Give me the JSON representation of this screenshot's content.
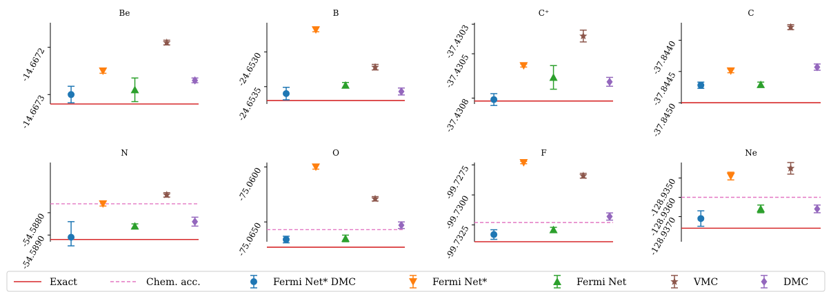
{
  "chart_data": {
    "type": "scatter",
    "panels": [
      {
        "title": "Be",
        "ylim": [
          -14.66732,
          -14.667148
        ],
        "yticks": [
          {
            "value": -14.6672,
            "label": "-14.6672"
          },
          {
            "value": -14.6673,
            "label": "-14.6673"
          }
        ],
        "exact": -14.66732,
        "chem_acc": null,
        "points": [
          {
            "series": "Fermi Net* DMC",
            "value": -14.6673,
            "err": 1.75e-05
          },
          {
            "series": "Fermi Net*",
            "value": -14.66725,
            "err": 5e-06
          },
          {
            "series": "Fermi Net",
            "value": -14.66729,
            "err": 2.5e-05
          },
          {
            "series": "VMC",
            "value": -14.66719,
            "err": 5e-06
          },
          {
            "series": "DMC",
            "value": -14.66727,
            "err": 5e-06
          }
        ]
      },
      {
        "title": "B",
        "ylim": [
          -24.65375,
          -24.65258
        ],
        "yticks": [
          {
            "value": -24.653,
            "label": "-24.6530"
          },
          {
            "value": -24.6535,
            "label": "-24.6535"
          }
        ],
        "exact": -24.6537,
        "chem_acc": null,
        "points": [
          {
            "series": "Fermi Net* DMC",
            "value": -24.6536,
            "err": 9e-05
          },
          {
            "series": "Fermi Net*",
            "value": -24.65268,
            "err": 3e-05
          },
          {
            "series": "Fermi Net",
            "value": -24.65348,
            "err": 4e-05
          },
          {
            "series": "VMC",
            "value": -24.65322,
            "err": 4e-05
          },
          {
            "series": "DMC",
            "value": -24.65357,
            "err": 5e-05
          }
        ]
      },
      {
        "title": "C⁺",
        "ylim": [
          -37.43084,
          -37.43029
        ],
        "yticks": [
          {
            "value": -37.4303,
            "label": "-37.4303"
          },
          {
            "value": -37.4305,
            "label": "-37.4305"
          },
          {
            "value": -37.4308,
            "label": "-37.4308"
          }
        ],
        "exact": -37.43082,
        "chem_acc": null,
        "points": [
          {
            "series": "Fermi Net* DMC",
            "value": -37.43081,
            "err": 4e-05
          },
          {
            "series": "Fermi Net*",
            "value": -37.43058,
            "err": 1e-05
          },
          {
            "series": "Fermi Net",
            "value": -37.43066,
            "err": 8e-05
          },
          {
            "series": "VMC",
            "value": -37.43038,
            "err": 4e-05
          },
          {
            "series": "DMC",
            "value": -37.43069,
            "err": 3e-05
          }
        ]
      },
      {
        "title": "C",
        "ylim": [
          -37.84502,
          -37.84372
        ],
        "yticks": [
          {
            "value": -37.844,
            "label": "-37.8440"
          },
          {
            "value": -37.8445,
            "label": "-37.8445"
          },
          {
            "value": -37.845,
            "label": "-37.8450"
          }
        ],
        "exact": -37.845,
        "chem_acc": null,
        "points": [
          {
            "series": "Fermi Net* DMC",
            "value": -37.84472,
            "err": 5e-05
          },
          {
            "series": "Fermi Net*",
            "value": -37.84449,
            "err": 3e-05
          },
          {
            "series": "Fermi Net",
            "value": -37.84471,
            "err": 4e-05
          },
          {
            "series": "VMC",
            "value": -37.84379,
            "err": 4e-05
          },
          {
            "series": "DMC",
            "value": -37.84443,
            "err": 5e-05
          }
        ]
      },
      {
        "title": "N",
        "ylim": [
          -54.5893,
          -54.58575
        ],
        "yticks": [
          {
            "value": -54.588,
            "label": "-54.5880"
          },
          {
            "value": -54.589,
            "label": "-54.5890"
          }
        ],
        "exact": -54.5892,
        "chem_acc": -54.5876,
        "points": [
          {
            "series": "Fermi Net* DMC",
            "value": -54.5891,
            "err": 0.0007
          },
          {
            "series": "Fermi Net*",
            "value": -54.5876,
            "err": 0.0001
          },
          {
            "series": "Fermi Net",
            "value": -54.5886,
            "err": 0.0001
          },
          {
            "series": "VMC",
            "value": -54.5872,
            "err": 0.0001
          },
          {
            "series": "DMC",
            "value": -54.5884,
            "err": 0.0002
          }
        ]
      },
      {
        "title": "O",
        "ylim": [
          -75.0668,
          -75.0596
        ],
        "yticks": [
          {
            "value": -75.06,
            "label": "-75.0600"
          },
          {
            "value": -75.065,
            "label": "-75.0650"
          }
        ],
        "exact": -75.0673,
        "chem_acc": -75.0657,
        "points": [
          {
            "series": "Fermi Net* DMC",
            "value": -75.0666,
            "err": 0.0003
          },
          {
            "series": "Fermi Net*",
            "value": -75.06,
            "err": 0.0002
          },
          {
            "series": "Fermi Net",
            "value": -75.0665,
            "err": 0.0003
          },
          {
            "series": "VMC",
            "value": -75.0629,
            "err": 0.0002
          },
          {
            "series": "DMC",
            "value": -75.0653,
            "err": 0.0003
          }
        ]
      },
      {
        "title": "F",
        "ylim": [
          -99.7339,
          -99.7273
        ],
        "yticks": [
          {
            "value": -99.7275,
            "label": "-99.7275"
          },
          {
            "value": -99.73,
            "label": "-99.7300"
          },
          {
            "value": -99.7325,
            "label": "-99.7325"
          }
        ],
        "exact": -99.7339,
        "chem_acc": -99.7323,
        "points": [
          {
            "series": "Fermi Net* DMC",
            "value": -99.7333,
            "err": 0.0004
          },
          {
            "series": "Fermi Net*",
            "value": -99.7273,
            "err": 0.0001
          },
          {
            "series": "Fermi Net",
            "value": -99.7329,
            "err": 0.0002
          },
          {
            "series": "VMC",
            "value": -99.7284,
            "err": 0.0002
          },
          {
            "series": "DMC",
            "value": -99.7318,
            "err": 0.0003
          }
        ]
      },
      {
        "title": "Ne",
        "ylim": [
          -128.9383,
          -128.9342
        ],
        "yticks": [
          {
            "value": -128.935,
            "label": "-128.9350"
          },
          {
            "value": -128.936,
            "label": "-128.9360"
          },
          {
            "value": -128.937,
            "label": "-128.9370"
          }
        ],
        "exact": -128.9376,
        "chem_acc": -128.936,
        "points": [
          {
            "series": "Fermi Net* DMC",
            "value": -128.9371,
            "err": 0.0004
          },
          {
            "series": "Fermi Net*",
            "value": -128.9349,
            "err": 0.0002
          },
          {
            "series": "Fermi Net",
            "value": -128.9366,
            "err": 0.0002
          },
          {
            "series": "VMC",
            "value": -128.9345,
            "err": 0.0003
          },
          {
            "series": "DMC",
            "value": -128.9366,
            "err": 0.0002
          }
        ]
      }
    ],
    "series": [
      {
        "name": "Fermi Net* DMC",
        "color": "#1f77b4",
        "marker": "circle"
      },
      {
        "name": "Fermi Net*",
        "color": "#ff7f0e",
        "marker": "triangle-down"
      },
      {
        "name": "Fermi Net",
        "color": "#2ca02c",
        "marker": "triangle-up"
      },
      {
        "name": "VMC",
        "color": "#8c564b",
        "marker": "star"
      },
      {
        "name": "DMC",
        "color": "#9467bd",
        "marker": "diamond"
      }
    ],
    "legend": {
      "placement": "bottom",
      "entries": [
        {
          "name": "Exact",
          "color": "#d62728",
          "style": "line"
        },
        {
          "name": "Chem. acc.",
          "color": "#e377c2",
          "style": "dashed"
        },
        {
          "name": "Fermi Net* DMC",
          "color": "#1f77b4",
          "style": "circle"
        },
        {
          "name": "Fermi Net*",
          "color": "#ff7f0e",
          "style": "triangle-down"
        },
        {
          "name": "Fermi Net",
          "color": "#2ca02c",
          "style": "triangle-up"
        },
        {
          "name": "VMC",
          "color": "#8c564b",
          "style": "star"
        },
        {
          "name": "DMC",
          "color": "#9467bd",
          "style": "diamond"
        }
      ]
    }
  }
}
